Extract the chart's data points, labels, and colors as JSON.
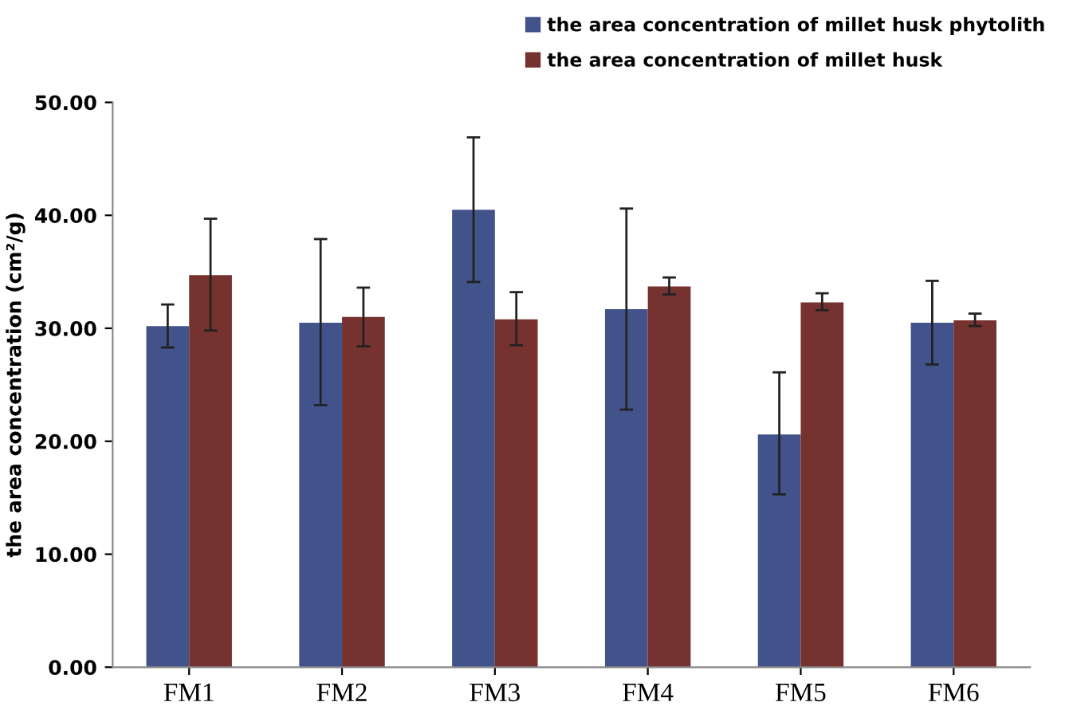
{
  "chart_data": {
    "type": "bar",
    "ylabel": "the area concentration (cm²/g)",
    "categories": [
      "FM1",
      "FM2",
      "FM3",
      "FM4",
      "FM5",
      "FM6"
    ],
    "series": [
      {
        "name": "the area concentration of millet husk phytolith",
        "color": "#41538a",
        "values": [
          30.2,
          30.5,
          40.5,
          31.7,
          20.6,
          30.5
        ],
        "errors": [
          [
            28.3,
            32.1
          ],
          [
            23.2,
            37.9
          ],
          [
            34.1,
            46.9
          ],
          [
            22.8,
            40.6
          ],
          [
            15.3,
            26.1
          ],
          [
            26.8,
            34.2
          ]
        ]
      },
      {
        "name": "the area concentration of millet husk",
        "color": "#75322f",
        "values": [
          34.7,
          31.0,
          30.8,
          33.7,
          32.3,
          30.7
        ],
        "errors": [
          [
            29.8,
            39.7
          ],
          [
            28.4,
            33.6
          ],
          [
            28.5,
            33.2
          ],
          [
            33.0,
            34.5
          ],
          [
            31.6,
            33.1
          ],
          [
            30.2,
            31.3
          ]
        ]
      }
    ],
    "ylim": [
      0,
      50
    ],
    "yticks": [
      {
        "value": 0,
        "label": "0.00"
      },
      {
        "value": 10,
        "label": "10.00"
      },
      {
        "value": 20,
        "label": "20.00"
      },
      {
        "value": 30,
        "label": "30.00"
      },
      {
        "value": 40,
        "label": "40.00"
      },
      {
        "value": 50,
        "label": "50.00"
      }
    ],
    "grid": false,
    "legend": "top right"
  }
}
